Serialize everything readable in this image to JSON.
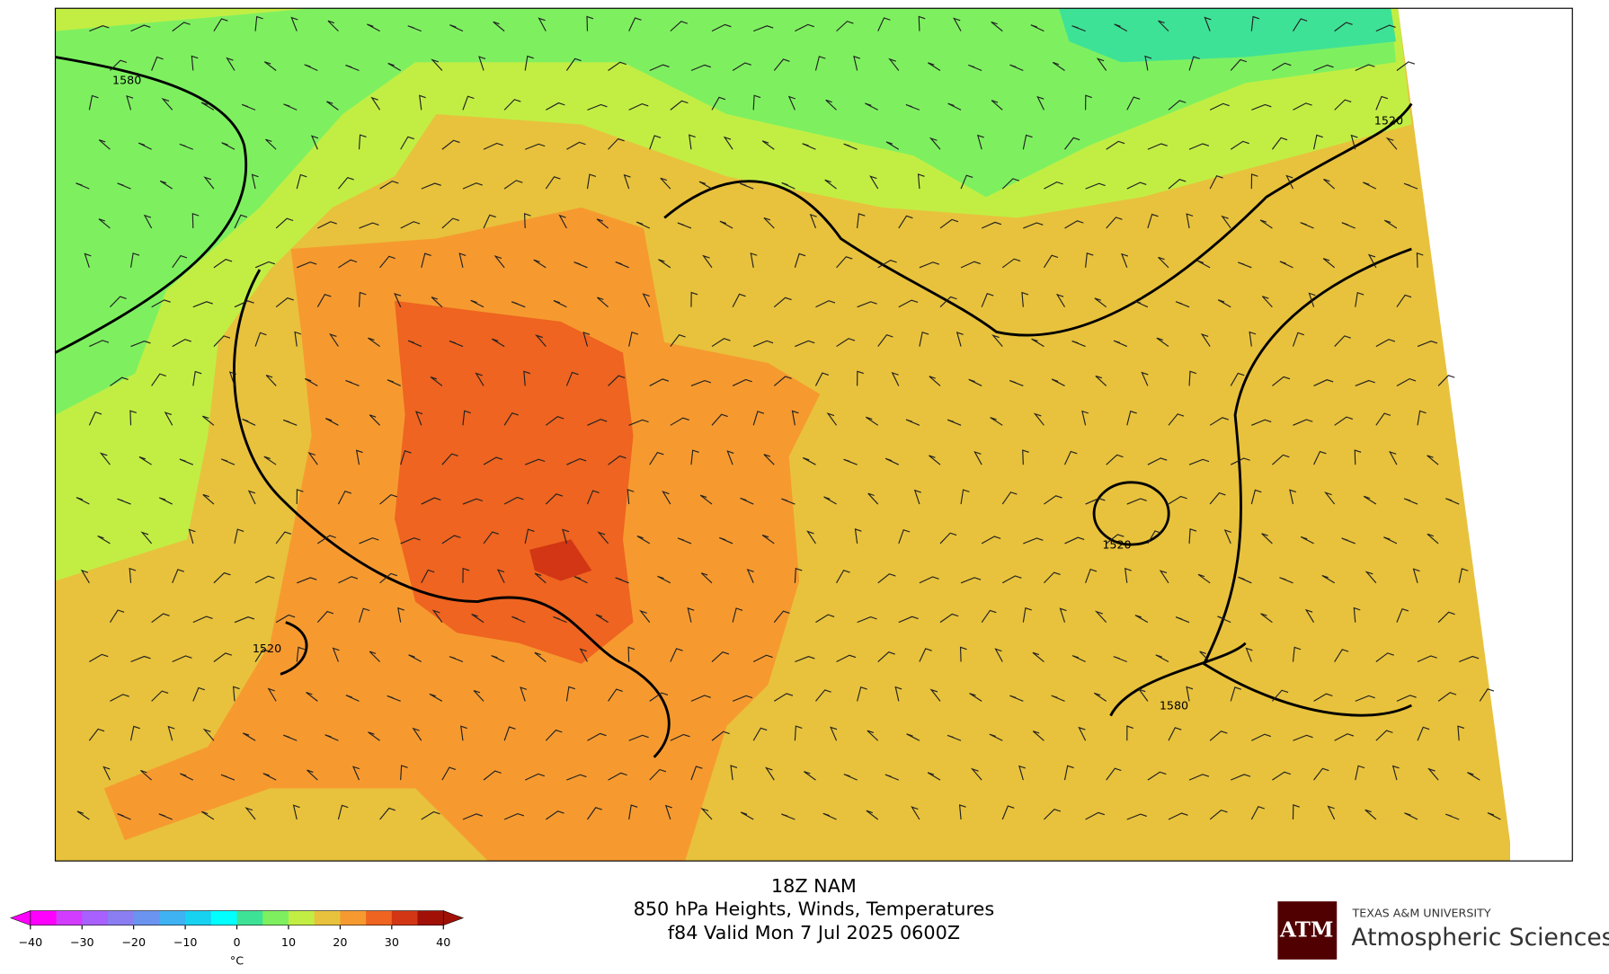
{
  "header": {
    "model": "18Z NAM",
    "product": "850 hPa Heights, Winds, Temperatures",
    "valid": "f84 Valid Mon 7 Jul 2025 0600Z"
  },
  "contour_labels": [
    "1580",
    "1520",
    "1520",
    "1520",
    "1580"
  ],
  "colorbar": {
    "ticks": [
      {
        "value": -40,
        "label": "−40"
      },
      {
        "value": -30,
        "label": "−30"
      },
      {
        "value": -20,
        "label": "−20"
      },
      {
        "value": -10,
        "label": "−10"
      },
      0,
      10,
      20,
      30,
      40
    ],
    "range": [
      -40,
      40
    ],
    "colors": [
      "#ff00ff",
      "#d23cff",
      "#a860ff",
      "#8a7ef2",
      "#6a94f0",
      "#3eb2f2",
      "#18d2f2",
      "#00ffff",
      "#3ee296",
      "#7ef060",
      "#c2ee44",
      "#e8c23c",
      "#f69a30",
      "#ee6420",
      "#d23614",
      "#a01006"
    ],
    "unit": "°C"
  },
  "logo": {
    "mark": "ATM",
    "university": "TEXAS A&M UNIVERSITY",
    "department": "Atmospheric Sciences"
  }
}
